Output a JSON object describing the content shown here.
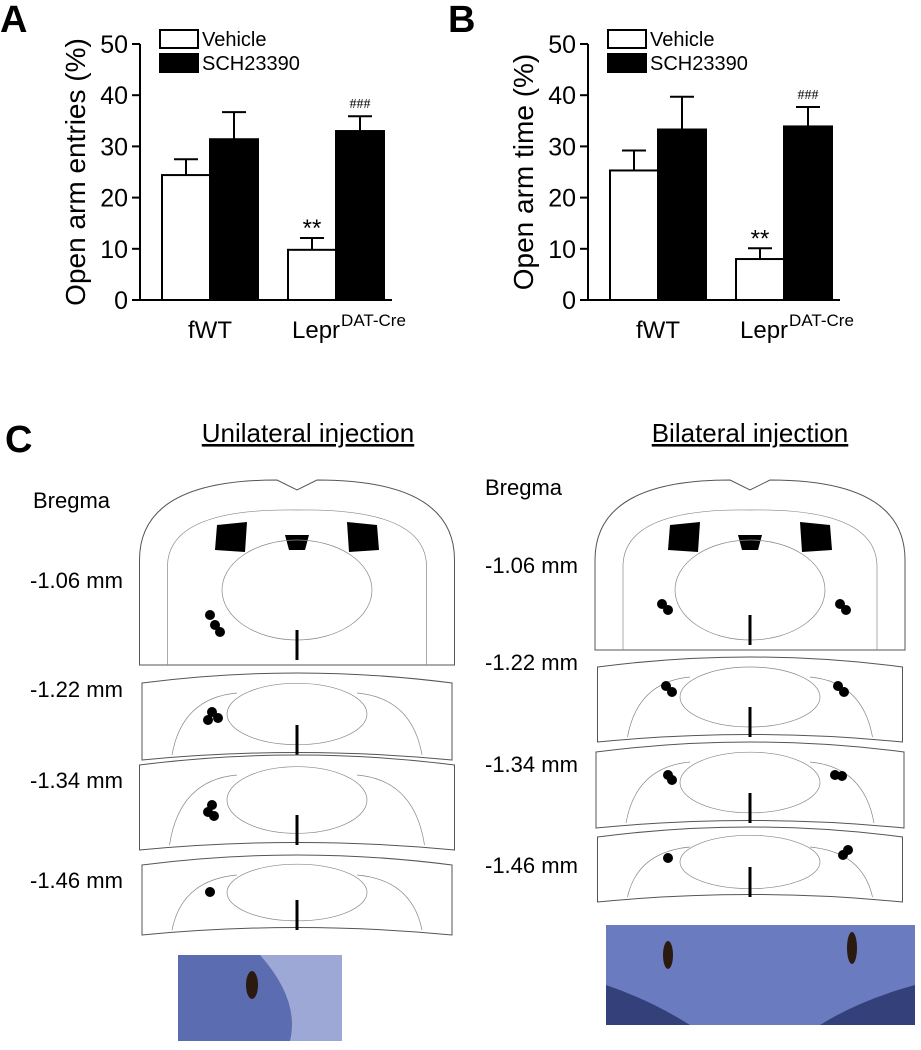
{
  "chart_data": [
    {
      "type": "bar",
      "panel": "A",
      "ylabel": "Open arm entries (%)",
      "categories": [
        "fWT",
        "Lepr"
      ],
      "category_superscripts": [
        null,
        "DAT-Cre"
      ],
      "series": [
        {
          "name": "Vehicle",
          "color": "#ffffff",
          "values": [
            24.4,
            9.8
          ],
          "errors": [
            3.1,
            2.3
          ],
          "annotations": [
            null,
            "**"
          ]
        },
        {
          "name": "SCH23390",
          "color": "#000000",
          "values": [
            31.4,
            33.0
          ],
          "errors": [
            5.3,
            2.9
          ],
          "annotations": [
            null,
            "###"
          ]
        }
      ],
      "ylim": [
        0,
        50
      ],
      "yticks": [
        0,
        10,
        20,
        30,
        40,
        50
      ],
      "legend": "top-left"
    },
    {
      "type": "bar",
      "panel": "B",
      "ylabel": "Open arm time (%)",
      "categories": [
        "fWT",
        "Lepr"
      ],
      "category_superscripts": [
        null,
        "DAT-Cre"
      ],
      "series": [
        {
          "name": "Vehicle",
          "color": "#ffffff",
          "values": [
            25.3,
            8.0
          ],
          "errors": [
            3.9,
            2.1
          ],
          "annotations": [
            null,
            "**"
          ]
        },
        {
          "name": "SCH23390",
          "color": "#000000",
          "values": [
            33.3,
            33.9
          ],
          "errors": [
            6.4,
            3.8
          ],
          "annotations": [
            null,
            "###"
          ]
        }
      ],
      "ylim": [
        0,
        50
      ],
      "yticks": [
        0,
        10,
        20,
        30,
        40,
        50
      ],
      "legend": "top-left"
    }
  ],
  "panel_c": {
    "label": "C",
    "unilateral": {
      "title": "Unilateral injection",
      "bregma": "Bregma",
      "levels": [
        "-1.06  mm",
        "-1.22 mm",
        "-1.34 mm",
        "-1.46 mm"
      ]
    },
    "bilateral": {
      "title": "Bilateral injection",
      "bregma": "Bregma",
      "levels": [
        "-1.06  mm",
        "-1.22 mm",
        "-1.34 mm",
        "-1.46 mm"
      ]
    }
  }
}
